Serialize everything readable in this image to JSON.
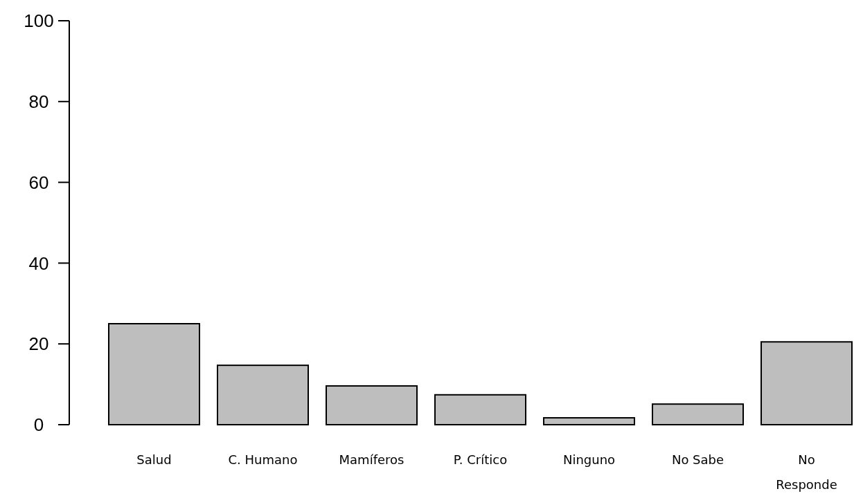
{
  "chart_data": {
    "type": "bar",
    "categories": [
      "Salud",
      "C. Humano",
      "Mamíferos",
      "P. Crítico",
      "Ninguno",
      "No Sabe",
      "No Responde"
    ],
    "values": [
      25.0,
      14.7,
      9.6,
      7.4,
      1.7,
      5.1,
      20.5
    ],
    "color": "#bebebe",
    "ylim": [
      0,
      100
    ],
    "yticks": [
      0,
      20,
      40,
      60,
      80,
      100
    ],
    "grid": false
  }
}
